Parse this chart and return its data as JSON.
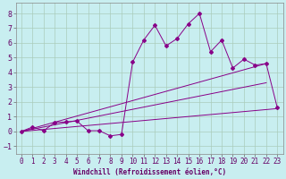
{
  "xlabel": "Windchill (Refroidissement éolien,°C)",
  "background_color": "#c8eef0",
  "line_color": "#880088",
  "grid_color": "#aaccbb",
  "xlim": [
    -0.5,
    23.5
  ],
  "ylim": [
    -1.5,
    8.7
  ],
  "xticks": [
    0,
    1,
    2,
    3,
    4,
    5,
    6,
    7,
    8,
    9,
    10,
    11,
    12,
    13,
    14,
    15,
    16,
    17,
    18,
    19,
    20,
    21,
    22,
    23
  ],
  "yticks": [
    -1,
    0,
    1,
    2,
    3,
    4,
    5,
    6,
    7,
    8
  ],
  "scatter_x": [
    0,
    1,
    2,
    3,
    4,
    5,
    6,
    7,
    8,
    9,
    10,
    11,
    12,
    13,
    14,
    15,
    16,
    17,
    18,
    19,
    20,
    21,
    22,
    23
  ],
  "scatter_y": [
    0.0,
    0.3,
    0.05,
    0.6,
    0.65,
    0.7,
    0.05,
    0.05,
    -0.3,
    -0.2,
    4.7,
    6.2,
    7.2,
    5.8,
    6.3,
    7.3,
    8.0,
    5.4,
    6.2,
    4.3,
    4.9,
    4.5,
    4.6,
    1.6
  ],
  "line1_x": [
    0,
    22
  ],
  "line1_y": [
    0.0,
    4.6
  ],
  "line2_x": [
    0,
    23
  ],
  "line2_y": [
    0.0,
    1.55
  ],
  "line3_x": [
    0,
    22
  ],
  "line3_y": [
    0.0,
    3.3
  ],
  "tick_fontsize": 5.5,
  "xlabel_fontsize": 5.5
}
